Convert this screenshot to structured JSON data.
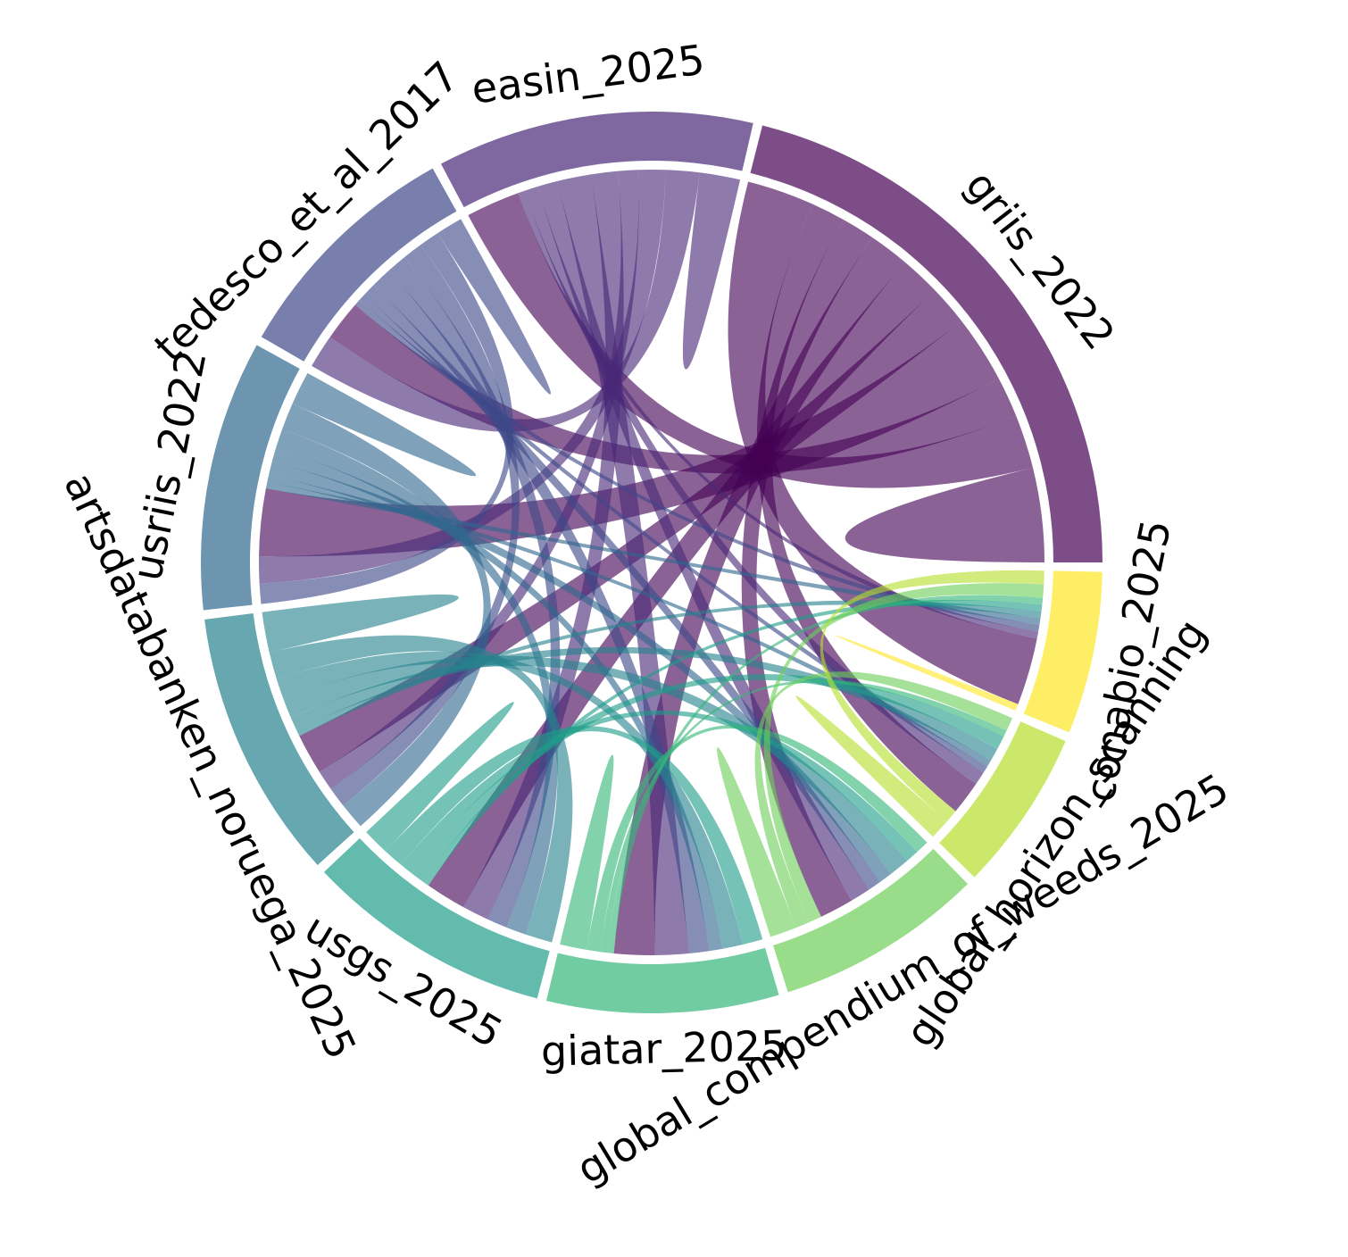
{
  "chart_data": {
    "type": "chord",
    "labels": [
      "griis_2022",
      "easin_2025",
      "tedesco_et_al_2017",
      "usriis_2022",
      "artsdatabanken_noruega_2025",
      "usgs_2025",
      "giatar_2025",
      "global_compendium_of_weeds_2025",
      "global_horizon_scanning",
      "conabio_2025"
    ],
    "colors": [
      "#440154",
      "#482878",
      "#3e4989",
      "#31688e",
      "#26828e",
      "#1f9e89",
      "#35b779",
      "#6ece58",
      "#b5de2b",
      "#fde725"
    ],
    "matrix": [
      [
        14,
        8,
        6,
        10,
        6,
        6,
        6,
        5,
        5,
        10
      ],
      [
        8,
        6,
        5,
        4,
        3,
        4,
        5,
        3,
        2,
        1
      ],
      [
        6,
        5,
        4,
        3,
        3,
        3,
        3,
        2,
        1,
        1
      ],
      [
        10,
        4,
        3,
        5,
        4,
        3,
        2,
        2,
        1,
        1
      ],
      [
        6,
        3,
        3,
        4,
        6,
        4,
        3,
        3,
        2,
        1
      ],
      [
        6,
        4,
        3,
        3,
        4,
        4,
        3,
        2,
        2,
        1
      ],
      [
        6,
        5,
        3,
        2,
        3,
        3,
        4,
        2,
        1,
        1
      ],
      [
        5,
        3,
        2,
        2,
        3,
        2,
        2,
        4,
        2,
        2
      ],
      [
        5,
        2,
        1,
        1,
        2,
        2,
        1,
        2,
        3,
        2
      ],
      [
        10,
        1,
        1,
        1,
        1,
        1,
        1,
        2,
        2,
        1
      ]
    ]
  }
}
